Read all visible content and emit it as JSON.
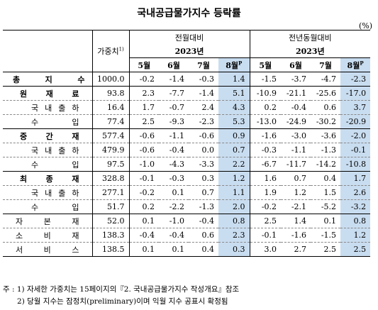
{
  "title": "국내공급물가지수 등락률",
  "unit": "(%)",
  "header": {
    "weight": "가중치",
    "weight_sup": "1)",
    "group1": "전월대비",
    "group2": "전년동월대비",
    "year": "2023년",
    "months": [
      "5월",
      "6월",
      "7월",
      "8월"
    ],
    "last_sup": "P"
  },
  "rows": [
    {
      "label": "총 지 수",
      "level": 0,
      "weight": "1000.0",
      "mom": [
        "-0.2",
        "-1.4",
        "-0.3",
        "1.4"
      ],
      "yoy": [
        "-1.5",
        "-3.7",
        "-4.7",
        "-2.3"
      ]
    },
    {
      "label": "원 재 료",
      "level": 1,
      "weight": "93.8",
      "mom": [
        "2.3",
        "-7.7",
        "-1.4",
        "5.1"
      ],
      "yoy": [
        "-10.9",
        "-21.1",
        "-25.6",
        "-17.0"
      ]
    },
    {
      "label": "국 내 출 하",
      "level": 2,
      "weight": "16.4",
      "mom": [
        "1.7",
        "-0.7",
        "2.4",
        "4.3"
      ],
      "yoy": [
        "0.2",
        "-0.4",
        "0.6",
        "3.7"
      ]
    },
    {
      "label": "수 입",
      "level": 2,
      "weight": "77.4",
      "mom": [
        "2.5",
        "-9.3",
        "-2.3",
        "5.3"
      ],
      "yoy": [
        "-13.0",
        "-24.9",
        "-30.2",
        "-20.9"
      ]
    },
    {
      "label": "중 간 재",
      "level": 1,
      "weight": "577.4",
      "mom": [
        "-0.6",
        "-1.1",
        "-0.6",
        "0.9"
      ],
      "yoy": [
        "-1.6",
        "-3.0",
        "-3.6",
        "-2.0"
      ]
    },
    {
      "label": "국 내 출 하",
      "level": 2,
      "weight": "479.9",
      "mom": [
        "-0.6",
        "-0.4",
        "0.0",
        "0.7"
      ],
      "yoy": [
        "-0.3",
        "-1.1",
        "-1.3",
        "-0.1"
      ]
    },
    {
      "label": "수 입",
      "level": 2,
      "weight": "97.5",
      "mom": [
        "-1.0",
        "-4.3",
        "-3.3",
        "2.2"
      ],
      "yoy": [
        "-6.7",
        "-11.7",
        "-14.2",
        "-10.8"
      ]
    },
    {
      "label": "최 종 재",
      "level": 1,
      "weight": "328.8",
      "mom": [
        "-0.1",
        "-0.3",
        "0.3",
        "1.2"
      ],
      "yoy": [
        "1.6",
        "0.7",
        "0.4",
        "1.7"
      ]
    },
    {
      "label": "국 내 출 하",
      "level": 2,
      "weight": "277.1",
      "mom": [
        "-0.2",
        "0.1",
        "0.7",
        "1.1"
      ],
      "yoy": [
        "1.9",
        "1.2",
        "1.5",
        "2.6"
      ]
    },
    {
      "label": "수 입",
      "level": 2,
      "weight": "51.7",
      "mom": [
        "0.2",
        "-2.2",
        "-1.3",
        "2.0"
      ],
      "yoy": [
        "-0.2",
        "-2.1",
        "-5.2",
        "-3.2"
      ]
    },
    {
      "label": "자 본 재",
      "level": 3,
      "weight": "52.0",
      "mom": [
        "0.1",
        "-1.0",
        "-0.4",
        "0.8"
      ],
      "yoy": [
        "2.5",
        "1.4",
        "0.1",
        "0.8"
      ]
    },
    {
      "label": "소 비 재",
      "level": 3,
      "weight": "138.3",
      "mom": [
        "-0.4",
        "-0.4",
        "0.6",
        "2.3"
      ],
      "yoy": [
        "-0.1",
        "-1.6",
        "-1.5",
        "1.2"
      ]
    },
    {
      "label": "서 비 스",
      "level": 3,
      "weight": "138.5",
      "mom": [
        "0.1",
        "0.1",
        "0.4",
        "0.3"
      ],
      "yoy": [
        "3.0",
        "2.7",
        "2.5",
        "2.5"
      ]
    }
  ],
  "notes": [
    "주 : 1) 자세한 가중치는 15페이지의『2. 국내공급물가지수 작성개요』참조",
    "      2) 당월 지수는 잠정치(preliminary)이며 익월 지수 공표시 확정됨"
  ]
}
